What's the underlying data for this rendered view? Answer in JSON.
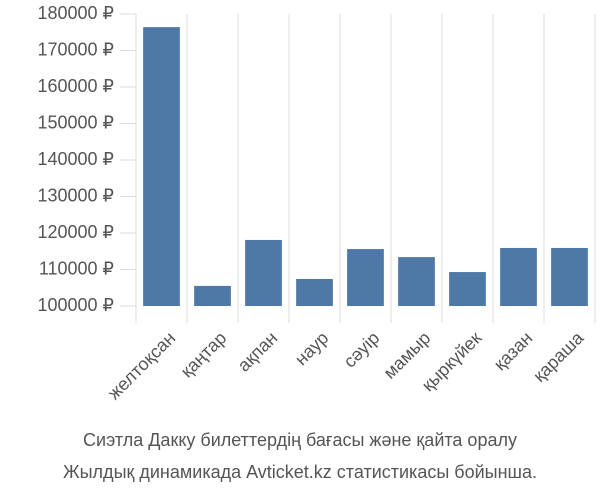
{
  "chart_data": {
    "type": "bar",
    "title": "Сиэтла Дакку билеттердің бағасы және қайта оралу",
    "subtitle": "Жылдық динамикада Avticket.kz статистикасы бойынша.",
    "categories": [
      "желтоқсан",
      "қаңтар",
      "ақпан",
      "наур",
      "сәуір",
      "мамыр",
      "қыркүйек",
      "қазан",
      "қараша"
    ],
    "values": [
      176400,
      105500,
      118100,
      107400,
      115600,
      113400,
      109300,
      115900,
      115900
    ],
    "color": "#4e79a7",
    "ylim": [
      100000,
      180000
    ],
    "yticks": [
      {
        "value": 100000,
        "label": "100000 ₽"
      },
      {
        "value": 110000,
        "label": "110000 ₽"
      },
      {
        "value": 120000,
        "label": "120000 ₽"
      },
      {
        "value": 130000,
        "label": "130000 ₽"
      },
      {
        "value": 140000,
        "label": "140000 ₽"
      },
      {
        "value": 150000,
        "label": "150000 ₽"
      },
      {
        "value": 160000,
        "label": "160000 ₽"
      },
      {
        "value": 170000,
        "label": "170000 ₽"
      },
      {
        "value": 180000,
        "label": "180000 ₽"
      }
    ],
    "grid": true
  }
}
